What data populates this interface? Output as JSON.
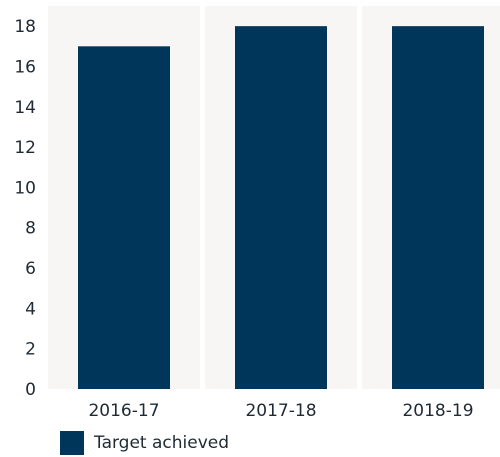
{
  "chart_data": {
    "type": "bar",
    "title": "",
    "xlabel": "",
    "ylabel": "",
    "categories": [
      "2016-17",
      "2017-18",
      "2018-19"
    ],
    "series": [
      {
        "name": "Target achieved",
        "values": [
          17,
          18,
          18
        ]
      }
    ],
    "ylim": [
      0,
      19
    ],
    "yticks": [
      0,
      2,
      4,
      6,
      8,
      10,
      12,
      14,
      16,
      18
    ],
    "legend_position": "bottom-left",
    "colors": {
      "bar": "#00365a",
      "panel": "#f7f6f4",
      "text": "#1f2a33"
    }
  }
}
